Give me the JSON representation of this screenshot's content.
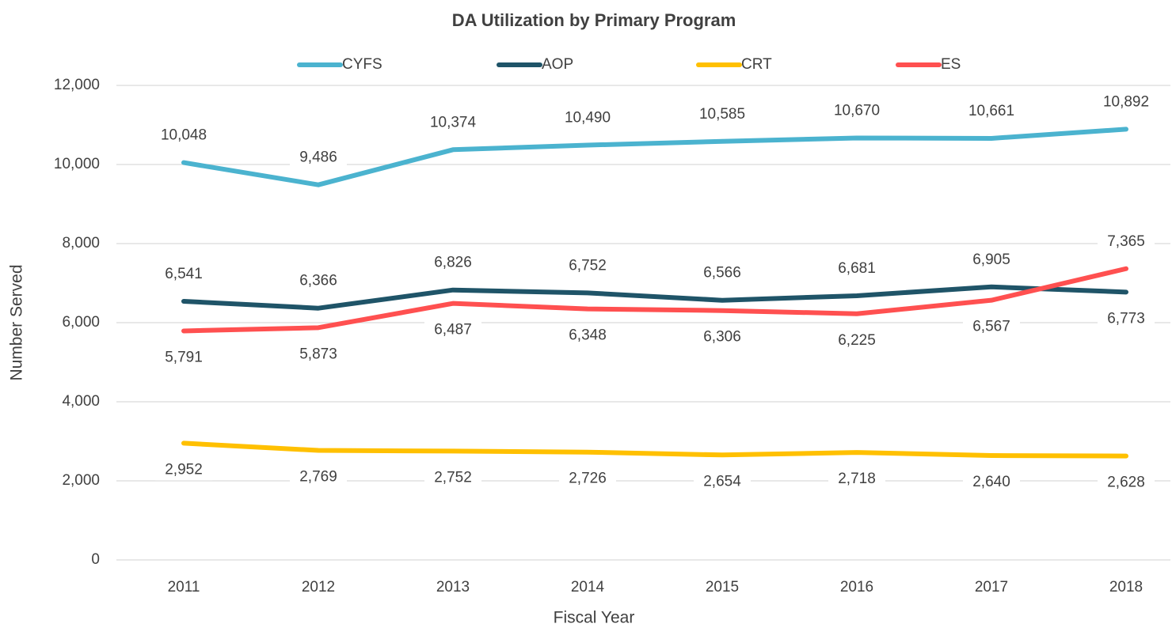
{
  "chart_data": {
    "type": "line",
    "title": "DA Utilization by Primary Program",
    "x_label": "Fiscal Year",
    "y_label": "Number Served",
    "categories": [
      "2011",
      "2012",
      "2013",
      "2014",
      "2015",
      "2016",
      "2017",
      "2018"
    ],
    "series": [
      {
        "name": "CYFS",
        "color": "#4bb3cf",
        "values": [
          10048,
          9486,
          10374,
          10490,
          10585,
          10670,
          10661,
          10892
        ],
        "value_labels": [
          "10,048",
          "9,486",
          "10,374",
          "10,490",
          "10,585",
          "10,670",
          "10,661",
          "10,892"
        ]
      },
      {
        "name": "AOP",
        "color": "#1f5468",
        "values": [
          6541,
          6366,
          6826,
          6752,
          6566,
          6681,
          6905,
          6773
        ],
        "value_labels": [
          "6,541",
          "6,366",
          "6,826",
          "6,752",
          "6,566",
          "6,681",
          "6,905",
          "6,773"
        ]
      },
      {
        "name": "CRT",
        "color": "#ffc000",
        "values": [
          2952,
          2769,
          2752,
          2726,
          2654,
          2718,
          2640,
          2628
        ],
        "value_labels": [
          "2,952",
          "2,769",
          "2,752",
          "2,726",
          "2,654",
          "2,718",
          "2,640",
          "2,628"
        ]
      },
      {
        "name": "ES",
        "color": "#ff5050",
        "values": [
          5791,
          5873,
          6487,
          6348,
          6306,
          6225,
          6567,
          7365
        ],
        "value_labels": [
          "5,791",
          "5,873",
          "6,487",
          "6,348",
          "6,306",
          "6,225",
          "6,567",
          "7,365"
        ]
      }
    ],
    "ylim": [
      0,
      12000
    ],
    "yticks": [
      0,
      {
        "value": 2000,
        "label": "2,000"
      },
      {
        "value": 4000,
        "label": "4,000"
      },
      {
        "value": 6000,
        "label": "6,000"
      },
      {
        "value": 8000,
        "label": "8,000"
      },
      {
        "value": 10000,
        "label": "10,000"
      },
      {
        "value": 12000,
        "label": "12,000"
      }
    ],
    "grid": true,
    "legend": "top"
  }
}
